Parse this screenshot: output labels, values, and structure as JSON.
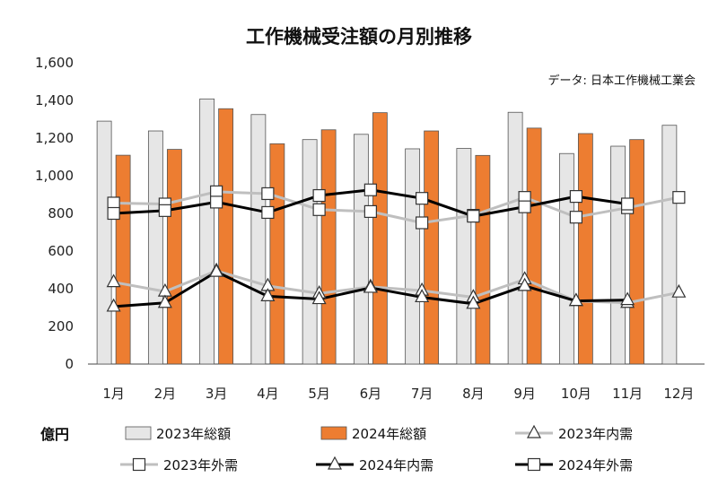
{
  "chart_data": {
    "type": "bar",
    "title": "工作機械受注額の月別推移",
    "source": "データ: 日本工作機械工業会",
    "unit_label": "億円",
    "categories": [
      "1月",
      "2月",
      "3月",
      "4月",
      "5月",
      "6月",
      "7月",
      "8月",
      "9月",
      "10月",
      "11月",
      "12月"
    ],
    "ylim": [
      0,
      1600
    ],
    "yticks": [
      0,
      200,
      400,
      600,
      800,
      1000,
      1200,
      1400,
      1600
    ],
    "ytick_labels": [
      "0",
      "200",
      "400",
      "600",
      "800",
      "1,000",
      "1,200",
      "1,400",
      "1,600"
    ],
    "grid": false,
    "legend_position": "bottom",
    "series": [
      {
        "name": "2023年総額",
        "kind": "bar",
        "color": "#e6e6e6",
        "stroke": "#555555",
        "values": [
          1290,
          1238,
          1408,
          1325,
          1192,
          1220,
          1143,
          1145,
          1337,
          1118,
          1157,
          1268
        ]
      },
      {
        "name": "2024年総額",
        "kind": "bar",
        "color": "#ed7d31",
        "stroke": "#555555",
        "values": [
          1109,
          1140,
          1356,
          1170,
          1244,
          1335,
          1238,
          1108,
          1253,
          1224,
          1192,
          null
        ]
      },
      {
        "name": "2023年内需",
        "kind": "line",
        "marker": "triangle",
        "color": "#bfbfbf",
        "values": [
          435,
          385,
          495,
          415,
          375,
          410,
          390,
          355,
          450,
          335,
          325,
          380
        ]
      },
      {
        "name": "2023年外需",
        "kind": "line",
        "marker": "square",
        "color": "#bfbfbf",
        "values": [
          855,
          850,
          915,
          905,
          820,
          810,
          750,
          790,
          885,
          780,
          830,
          885
        ]
      },
      {
        "name": "2024年内需",
        "kind": "line",
        "marker": "triangle",
        "color": "#000000",
        "values": [
          305,
          325,
          490,
          360,
          345,
          405,
          355,
          320,
          415,
          335,
          340,
          null
        ]
      },
      {
        "name": "2024年外需",
        "kind": "line",
        "marker": "square",
        "color": "#000000",
        "values": [
          800,
          815,
          860,
          805,
          895,
          925,
          880,
          785,
          835,
          890,
          850,
          null
        ]
      }
    ]
  }
}
